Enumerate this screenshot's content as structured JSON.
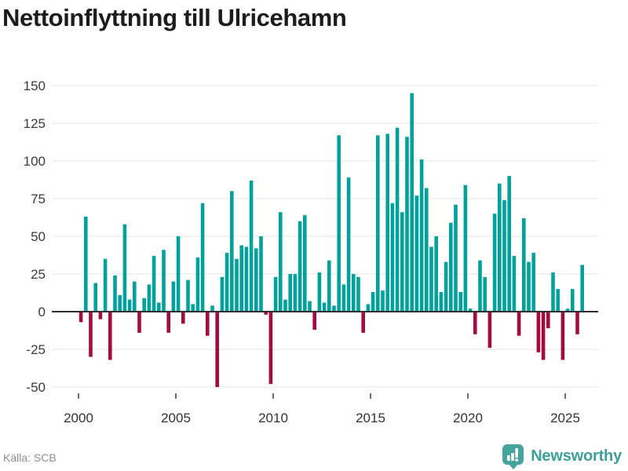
{
  "chart_data": {
    "type": "bar",
    "title": "Nettoinflyttning till Ulricehamn",
    "frequency": "quarterly",
    "x_start": "2000-Q1",
    "x_end": "2025-Q4",
    "values": [
      -7,
      63,
      -30,
      19,
      -5,
      35,
      -32,
      24,
      11,
      58,
      8,
      20,
      -14,
      9,
      18,
      37,
      6,
      41,
      -14,
      20,
      50,
      -8,
      21,
      5,
      36,
      72,
      -16,
      4,
      -50,
      23,
      39,
      80,
      35,
      44,
      43,
      87,
      42,
      50,
      -2,
      -48,
      23,
      66,
      8,
      25,
      25,
      60,
      64,
      7,
      -12,
      26,
      6,
      34,
      4,
      117,
      18,
      89,
      25,
      23,
      -14,
      5,
      13,
      117,
      14,
      118,
      72,
      122,
      66,
      116,
      145,
      77,
      101,
      82,
      43,
      50,
      13,
      33,
      59,
      71,
      13,
      84,
      2,
      -15,
      34,
      23,
      -24,
      65,
      85,
      74,
      90,
      37,
      -16,
      62,
      33,
      39,
      -27,
      -32,
      -11,
      26,
      15,
      -32,
      2,
      15,
      -15,
      31
    ],
    "xticks": [
      2000,
      2005,
      2010,
      2015,
      2020,
      2025
    ],
    "yticks": [
      150,
      125,
      100,
      75,
      50,
      25,
      0,
      -25,
      -50
    ],
    "ylim": [
      -50,
      150
    ],
    "grid": true,
    "legend": false,
    "colors": {
      "positive": "#00a29b",
      "negative": "#a40b3f"
    }
  },
  "footer": {
    "source": "Källa: SCB",
    "brand": "Newsworthy",
    "brand_color": "#3da09b"
  }
}
